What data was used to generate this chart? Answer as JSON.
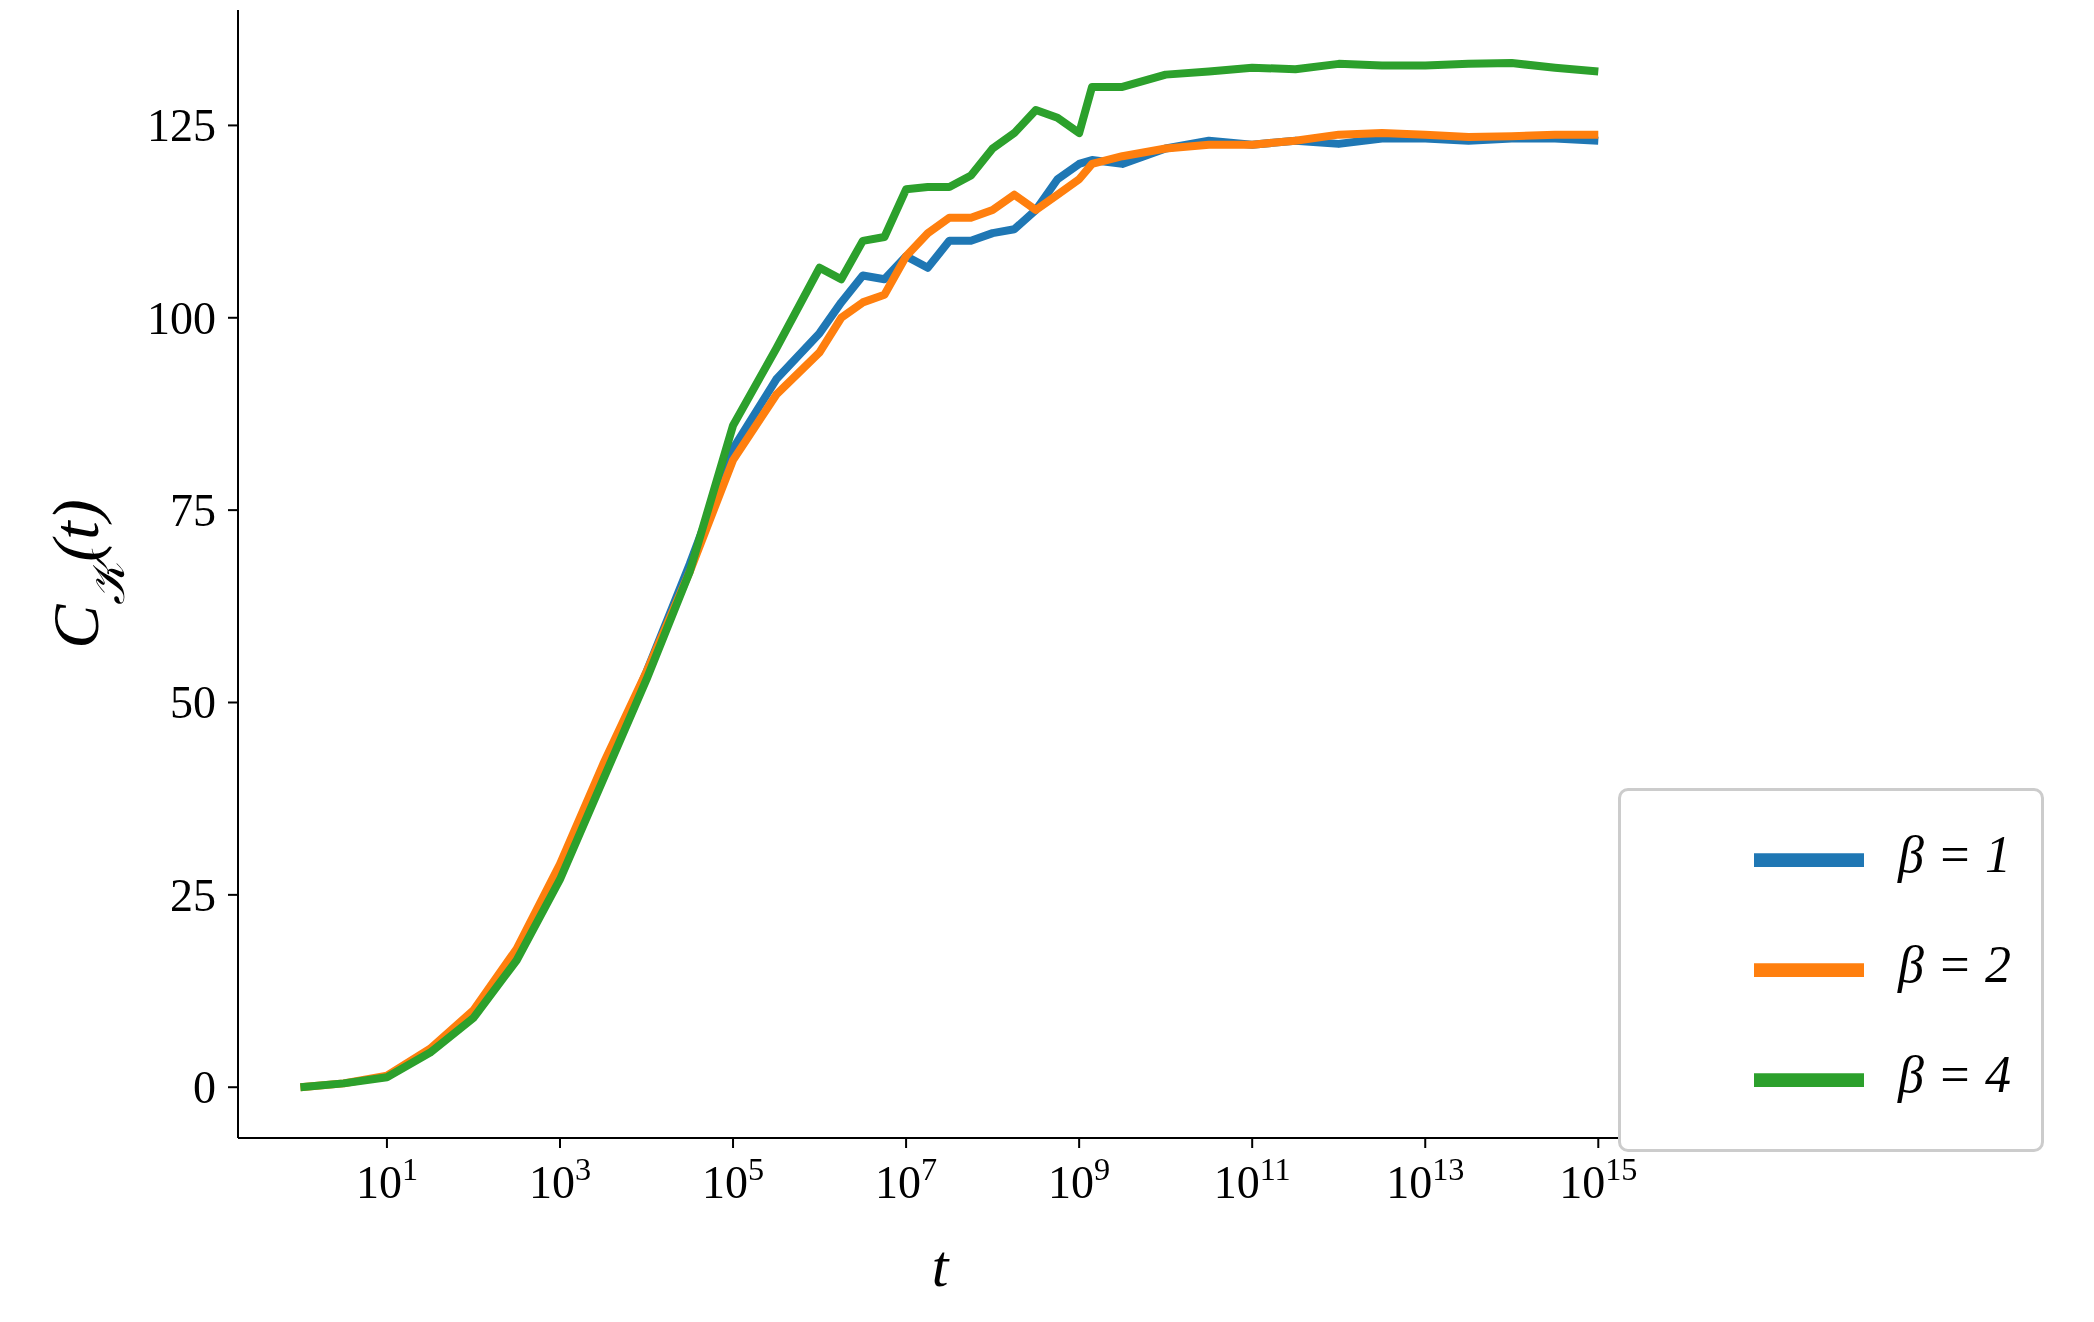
{
  "chart_data": {
    "type": "line",
    "xlabel": "t",
    "ylabel": "C$_{𝒦}$(t)",
    "x": [
      1,
      3.16,
      10,
      31.6,
      100,
      316,
      1000,
      3160,
      10000,
      31600,
      100000,
      316000,
      1000000,
      1780000,
      3160000,
      5620000,
      10000000,
      17800000,
      31600000,
      56200000,
      100000000,
      178000000,
      316000000,
      562000000,
      1000000000,
      1410000000,
      3160000000,
      10000000000,
      31600000000,
      100000000000,
      316000000000,
      1000000000000,
      3160000000000,
      10000000000000,
      31600000000000,
      100000000000000,
      316000000000000,
      1000000000000000
    ],
    "series": [
      {
        "name": "β = 1",
        "color": "#1f77b4",
        "values": [
          null,
          null,
          null,
          null,
          null,
          null,
          null,
          41,
          54,
          68,
          83,
          92,
          98,
          102,
          105.5,
          105,
          108,
          106.5,
          110,
          110,
          111,
          111.5,
          114,
          118,
          120,
          120.5,
          120,
          122,
          123,
          122.5,
          123,
          122.6,
          123.3,
          123.3,
          123,
          123.3,
          123.3,
          123
        ]
      },
      {
        "name": "β = 2",
        "color": "#ff7f0e",
        "values": [
          0,
          0.5,
          1.5,
          5,
          10,
          18,
          29,
          42,
          54,
          67,
          81.5,
          90,
          95.5,
          100,
          102,
          103,
          108,
          111,
          113,
          113,
          114,
          116,
          114,
          116,
          118,
          120,
          121,
          122,
          122.5,
          122.5,
          123,
          123.8,
          124,
          123.8,
          123.5,
          123.6,
          123.8,
          123.8
        ]
      },
      {
        "name": "β = 4",
        "color": "#2ca02c",
        "values": [
          0,
          0.5,
          1.3,
          4.5,
          9,
          16.5,
          27,
          40,
          53,
          67,
          86,
          96,
          106.5,
          105,
          110,
          110.5,
          116.7,
          117,
          117,
          118.5,
          122,
          124,
          127,
          126,
          124,
          130,
          130,
          131.6,
          132,
          132.5,
          132.3,
          133,
          132.8,
          132.8,
          133,
          133.1,
          132.5,
          132
        ]
      }
    ],
    "log": "x",
    "xlim": [
      0.19,
      3200000000000000
    ],
    "xticks": [
      {
        "value": 10,
        "label": "10$^{1}$"
      },
      {
        "value": 1000,
        "label": "10$^{3}$"
      },
      {
        "value": 100000,
        "label": "10$^{5}$"
      },
      {
        "value": 10000000,
        "label": "10$^{7}$"
      },
      {
        "value": 1000000000,
        "label": "10$^{9}$"
      },
      {
        "value": 100000000000,
        "label": "10$^{11}$"
      },
      {
        "value": 10000000000000,
        "label": "10$^{13}$"
      },
      {
        "value": 1000000000000000,
        "label": "10$^{15}$"
      }
    ],
    "ylim": [
      -6.6,
      140
    ],
    "yticks": [
      0,
      25,
      50,
      75,
      100,
      125
    ],
    "grid": false,
    "legend": "bottom right",
    "line_style": "solid",
    "marker": "none"
  }
}
